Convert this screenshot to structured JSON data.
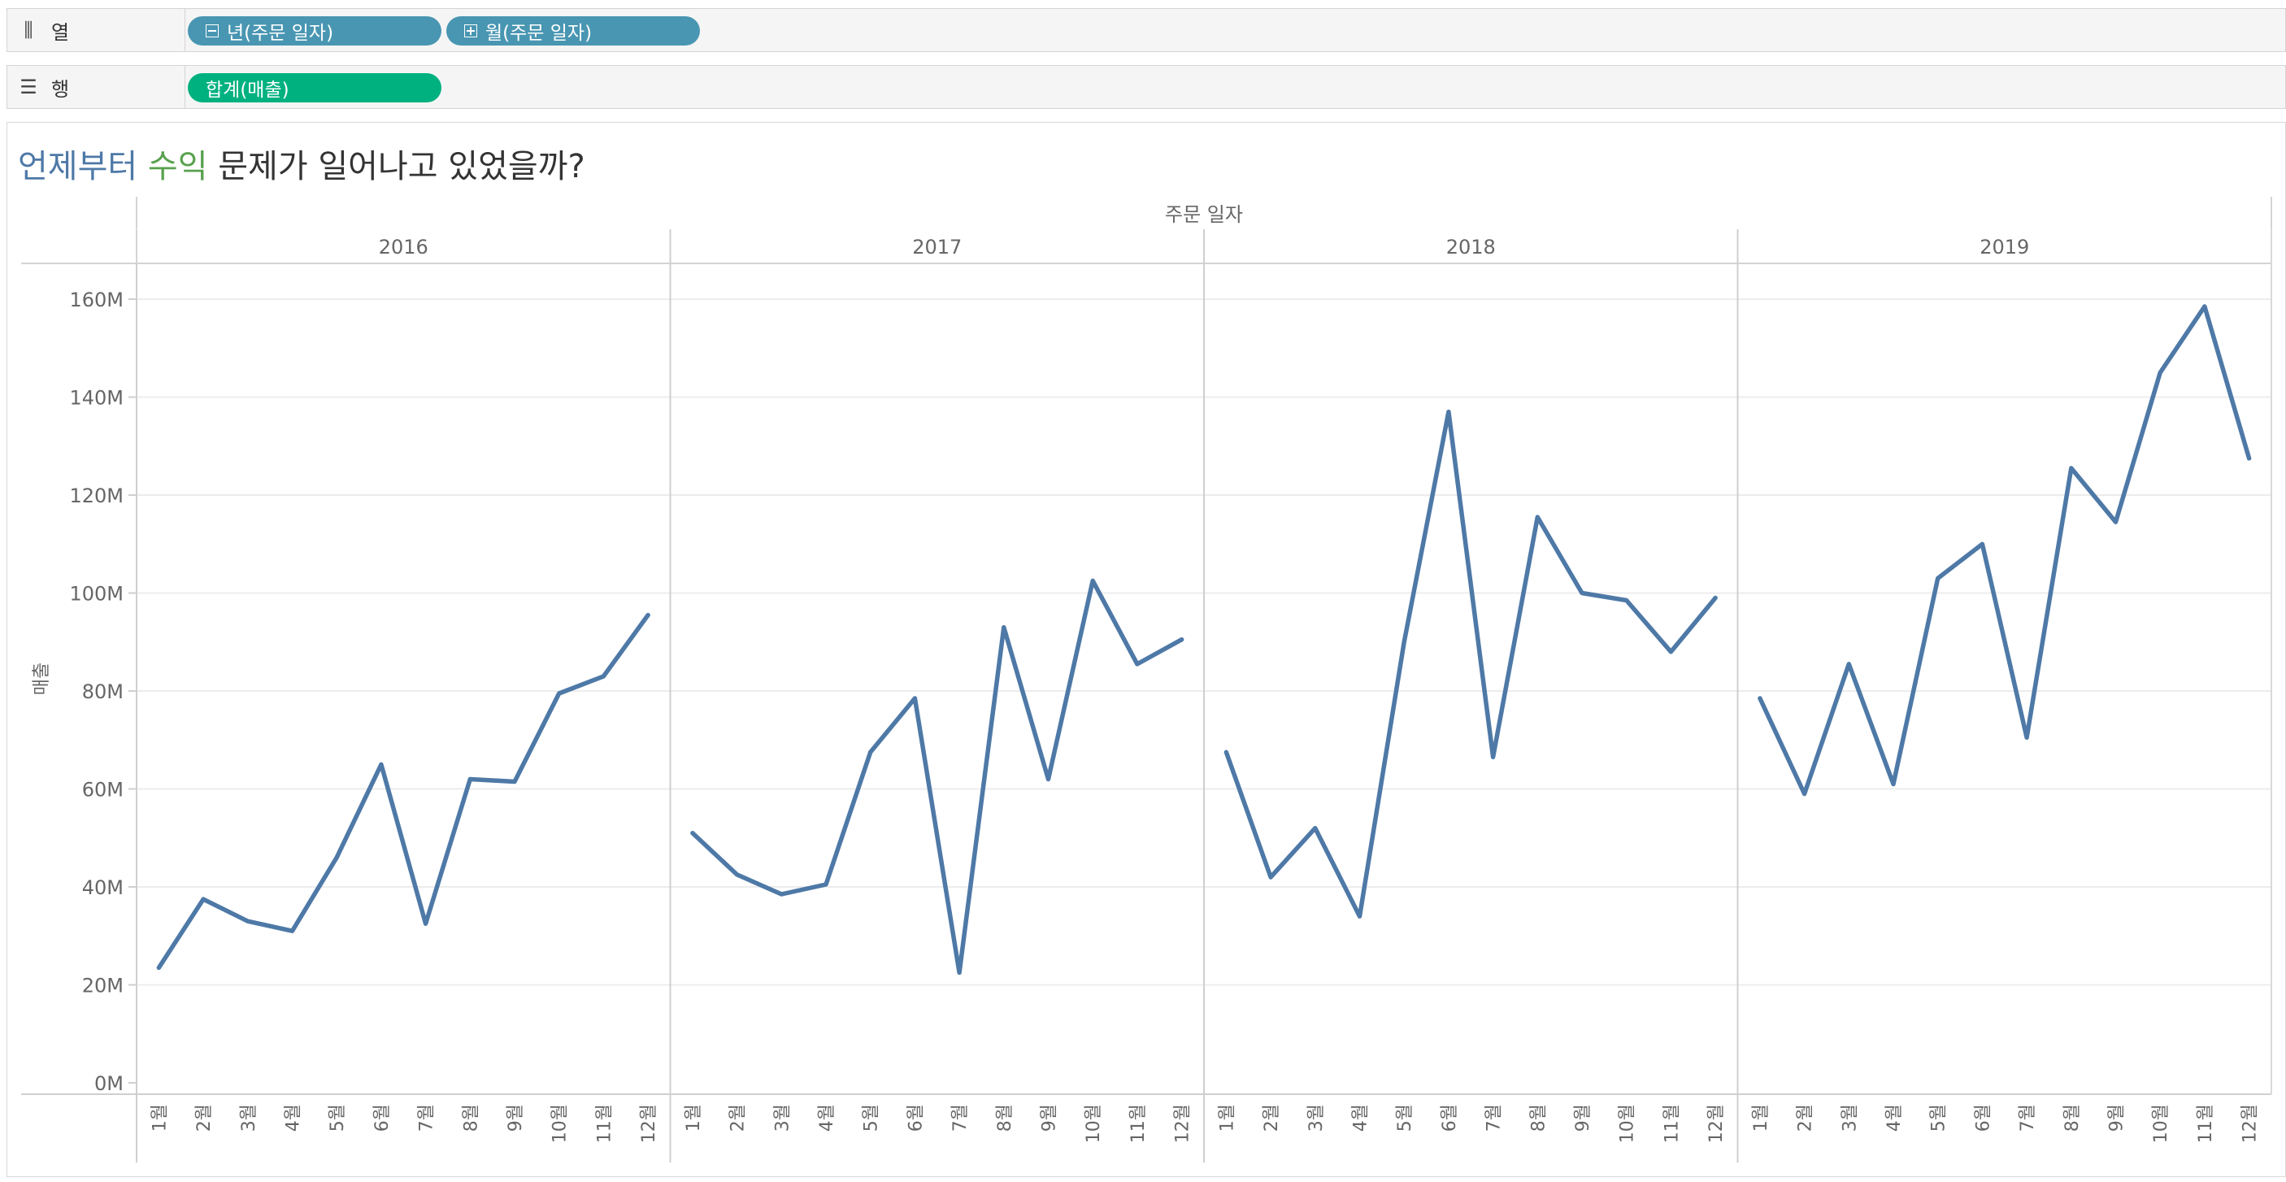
{
  "columns_shelf": {
    "label": "열",
    "icon": "columns-icon",
    "pills": [
      {
        "label": "년(주문 일자)",
        "icon": "collapse-icon"
      },
      {
        "label": "월(주문 일자)",
        "icon": "expand-icon"
      }
    ]
  },
  "rows_shelf": {
    "label": "행",
    "icon": "rows-icon",
    "pills": [
      {
        "label": "합계(매출)"
      }
    ]
  },
  "title": {
    "part1": "언제부터",
    "part2": "수익",
    "part3": "문제가 일어나고 있었을까?"
  },
  "colors": {
    "line": "#4e79a7",
    "title_part1": "#4e79a7",
    "title_part2": "#59a14f",
    "pill_dimension": "#4996b2",
    "pill_measure": "#00b180"
  },
  "chart_data": {
    "type": "line",
    "header_label": "주문 일자",
    "ylabel": "매출",
    "ylim": [
      0,
      160000000
    ],
    "yticks": [
      "0M",
      "20M",
      "40M",
      "60M",
      "80M",
      "100M",
      "120M",
      "140M",
      "160M"
    ],
    "categories": [
      "1월",
      "2월",
      "3월",
      "4월",
      "5월",
      "6월",
      "7월",
      "8월",
      "9월",
      "10월",
      "11월",
      "12월"
    ],
    "years": [
      "2016",
      "2017",
      "2018",
      "2019"
    ],
    "series": [
      {
        "values": [
          23.5,
          37.5,
          33,
          31,
          46,
          65,
          32.5,
          62,
          61.5,
          79.5,
          83,
          95.5
        ]
      },
      {
        "values": [
          51,
          42.5,
          38.5,
          40.5,
          67.5,
          78.5,
          22.5,
          93,
          62,
          102.5,
          85.5,
          90.5
        ]
      },
      {
        "values": [
          67.5,
          42,
          52,
          34,
          90,
          137,
          66.5,
          115.5,
          100,
          98.5,
          88,
          99
        ]
      },
      {
        "values": [
          78.5,
          59,
          85.5,
          61,
          103,
          110,
          70.5,
          125.5,
          114.5,
          145,
          158.5,
          127.5
        ]
      }
    ]
  }
}
